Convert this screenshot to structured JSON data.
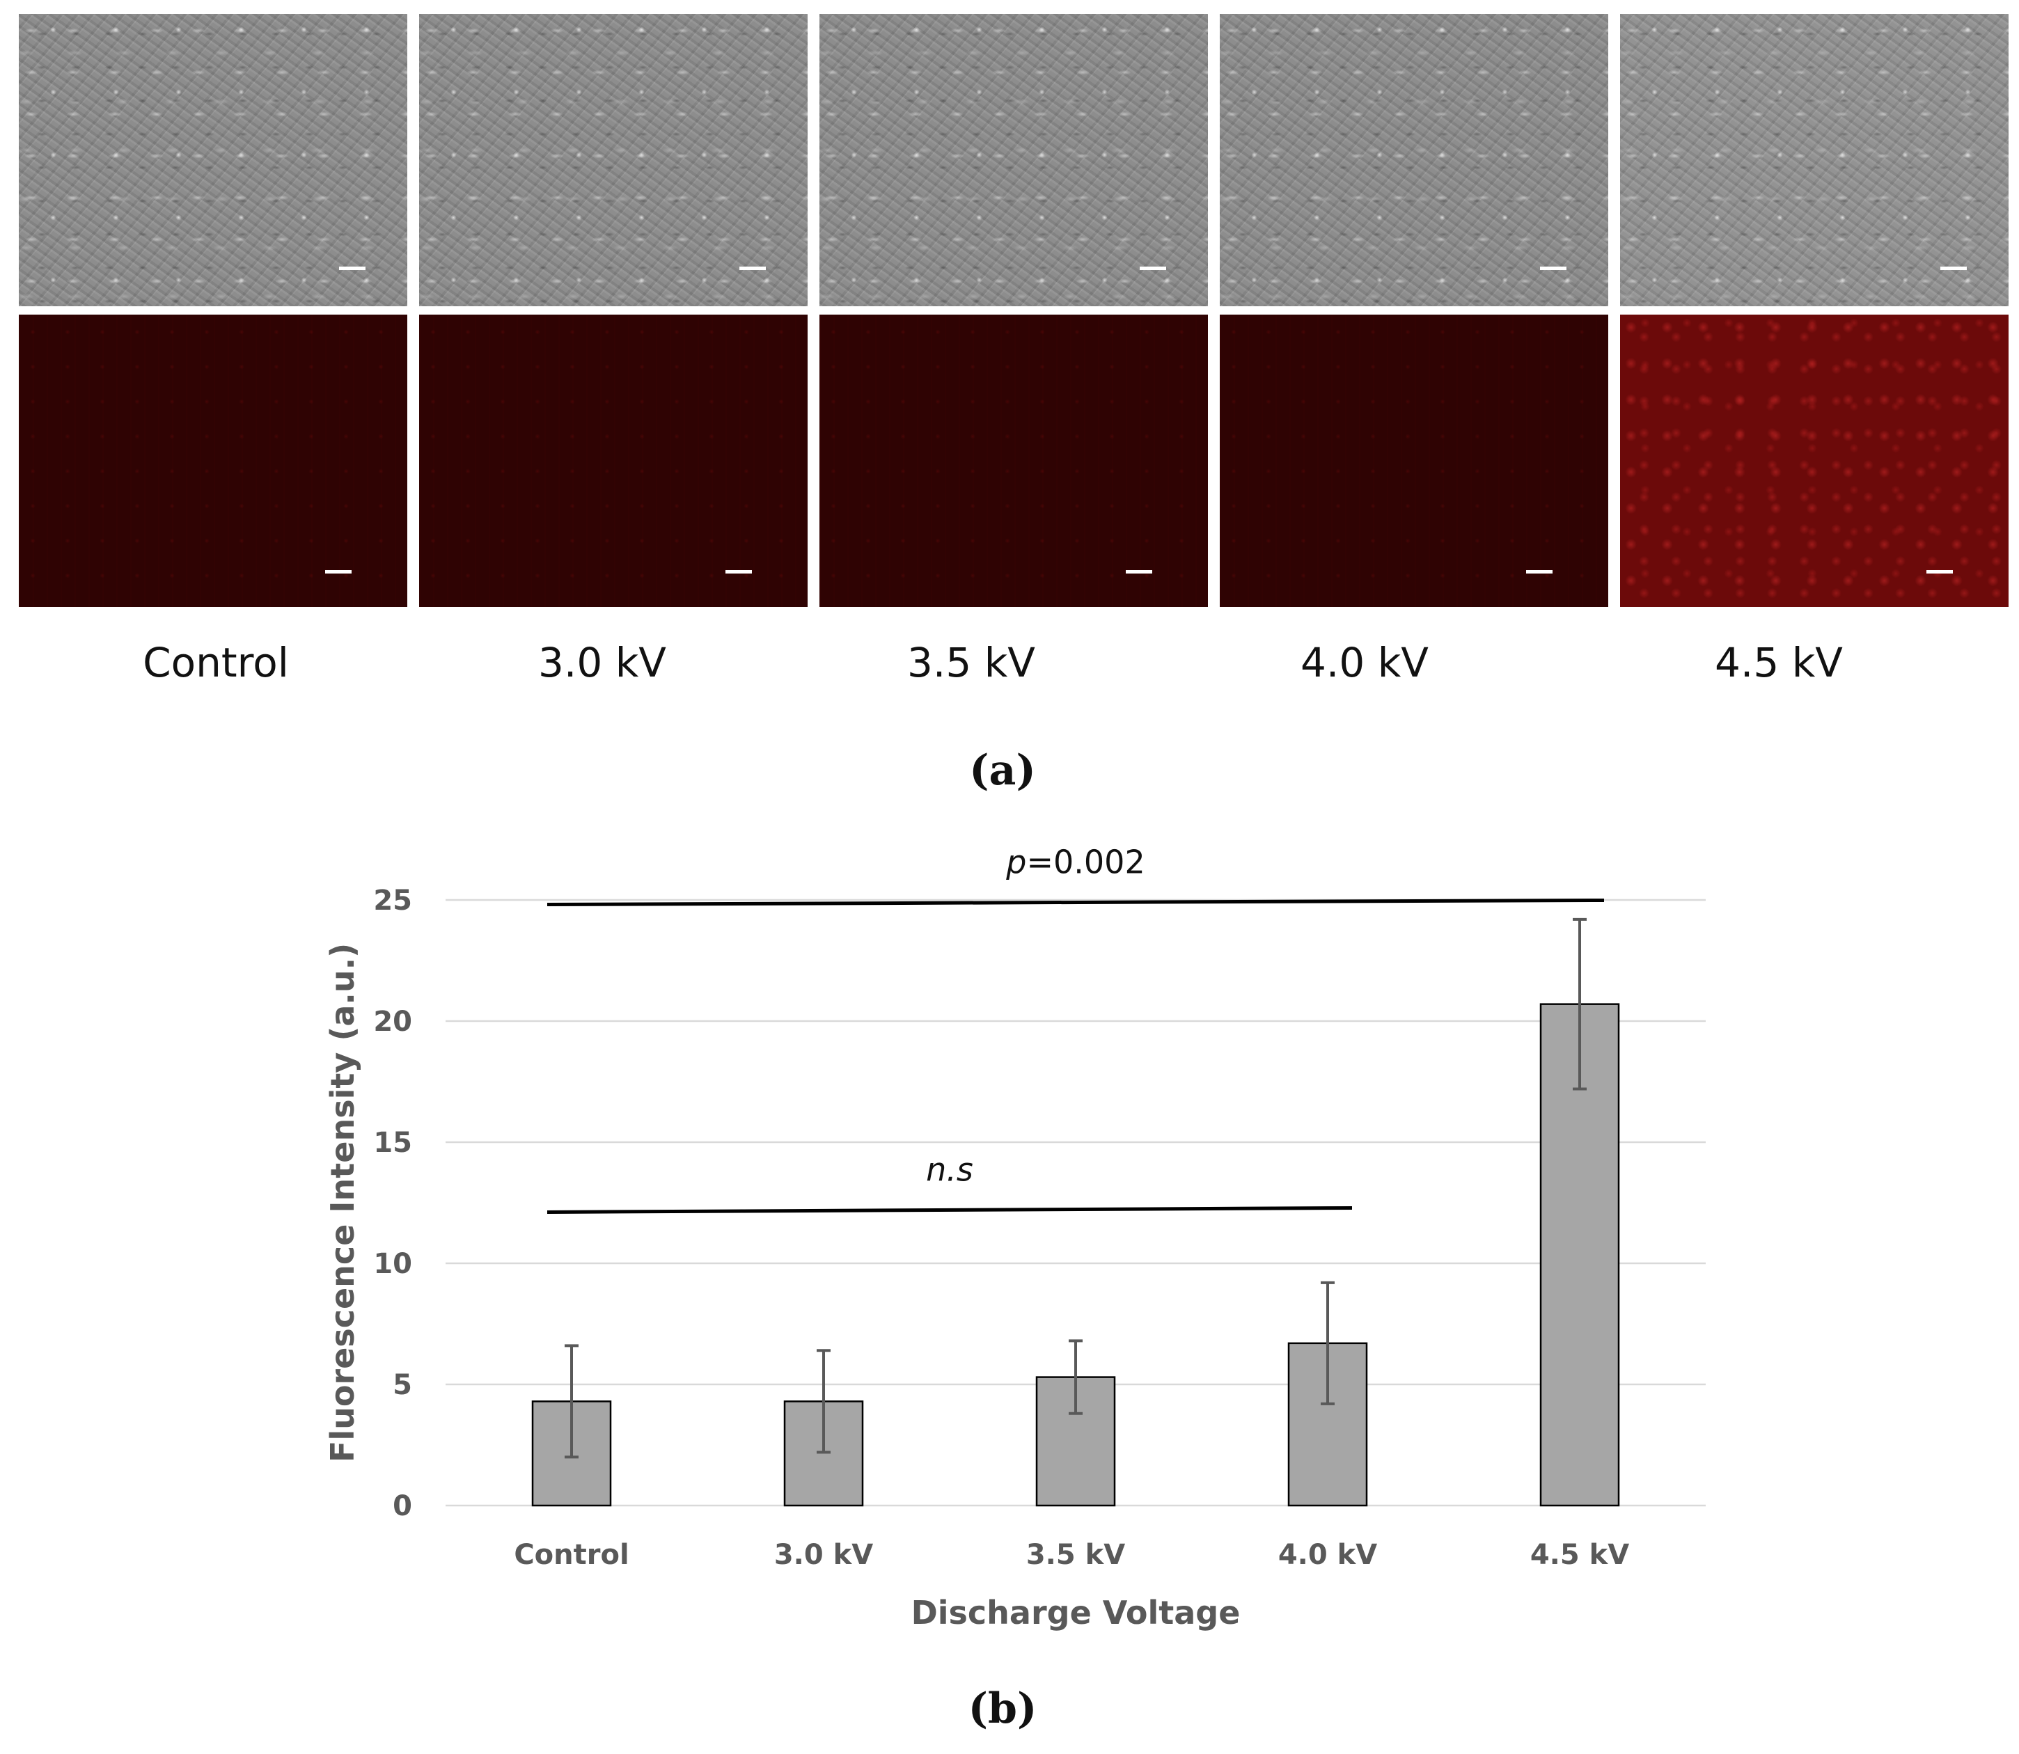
{
  "panel_a": {
    "columns": [
      {
        "label": "Control",
        "fluorescence": "dim"
      },
      {
        "label": "3.0 kV",
        "fluorescence": "dim"
      },
      {
        "label": "3.5 kV",
        "fluorescence": "dim"
      },
      {
        "label": "4.0 kV",
        "fluorescence": "dim"
      },
      {
        "label": "4.5 kV",
        "fluorescence": "bright"
      }
    ],
    "letter": "(a)"
  },
  "panel_b": {
    "letter": "(b)"
  },
  "chart_data": {
    "type": "bar",
    "categories": [
      "Control",
      "3.0 kV",
      "3.5 kV",
      "4.0 kV",
      "4.5 kV"
    ],
    "values": [
      4.3,
      4.3,
      5.3,
      6.7,
      20.7
    ],
    "errors": [
      2.3,
      2.1,
      1.5,
      2.5,
      3.5
    ],
    "xlabel": "Discharge Voltage",
    "ylabel": "Fluorescence Intensity (a.u.)",
    "ylim": [
      0,
      25
    ],
    "yticks": [
      0,
      5,
      10,
      15,
      20,
      25
    ],
    "grid": true,
    "bar_color": "#a6a6a6",
    "error_color": "#595959",
    "annotations": [
      {
        "text": "n.s",
        "from": "Control",
        "to": "4.0 kV",
        "y": 12.2
      },
      {
        "text_italic": "p",
        "text": "=0.002",
        "from": "Control",
        "to": "4.5 kV",
        "y": 24.9
      }
    ]
  }
}
